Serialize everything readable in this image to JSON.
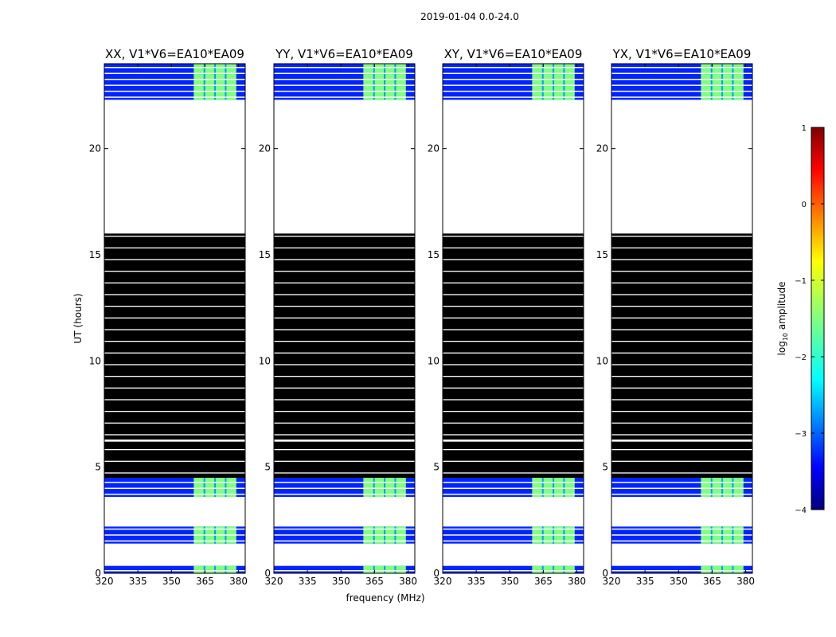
{
  "suptitle": "2019-01-04 0.0-24.0",
  "chart_data": {
    "type": "heatmap",
    "panels": [
      {
        "title": "XX, V1*V6=EA10*EA09"
      },
      {
        "title": "YY, V1*V6=EA10*EA09"
      },
      {
        "title": "XY, V1*V6=EA10*EA09"
      },
      {
        "title": "YX, V1*V6=EA10*EA09"
      }
    ],
    "xlabel": "frequency (MHz)",
    "ylabel": "UT (hours)",
    "xlim": [
      320,
      383
    ],
    "ylim": [
      0,
      24
    ],
    "xticks": [
      320,
      335,
      350,
      365,
      380
    ],
    "yticks": [
      0,
      5,
      10,
      15,
      20
    ],
    "colorbar": {
      "label_prefix": "log",
      "label_sub": "10",
      "label_suffix": " amplitude",
      "range": [
        -4,
        1
      ],
      "ticks": [
        1,
        0,
        -1,
        -2,
        -3,
        -4
      ],
      "tick_labels": [
        "1",
        "0",
        "−1",
        "−2",
        "−3",
        "−4"
      ]
    },
    "bright_band_mhz": [
      360,
      379
    ],
    "bright_band_level": -1.5,
    "background_level": -3.2,
    "data_segments_hours": [
      [
        0,
        0.35
      ],
      [
        1.4,
        2.2
      ],
      [
        3.6,
        4.5
      ],
      [
        22.3,
        24.0
      ]
    ],
    "flagged_black_hours": [
      [
        4.5,
        6.2
      ],
      [
        6.3,
        16.0
      ]
    ],
    "blank_hours": [
      [
        0.35,
        1.4
      ],
      [
        2.2,
        3.6
      ],
      [
        16.0,
        22.3
      ]
    ]
  }
}
